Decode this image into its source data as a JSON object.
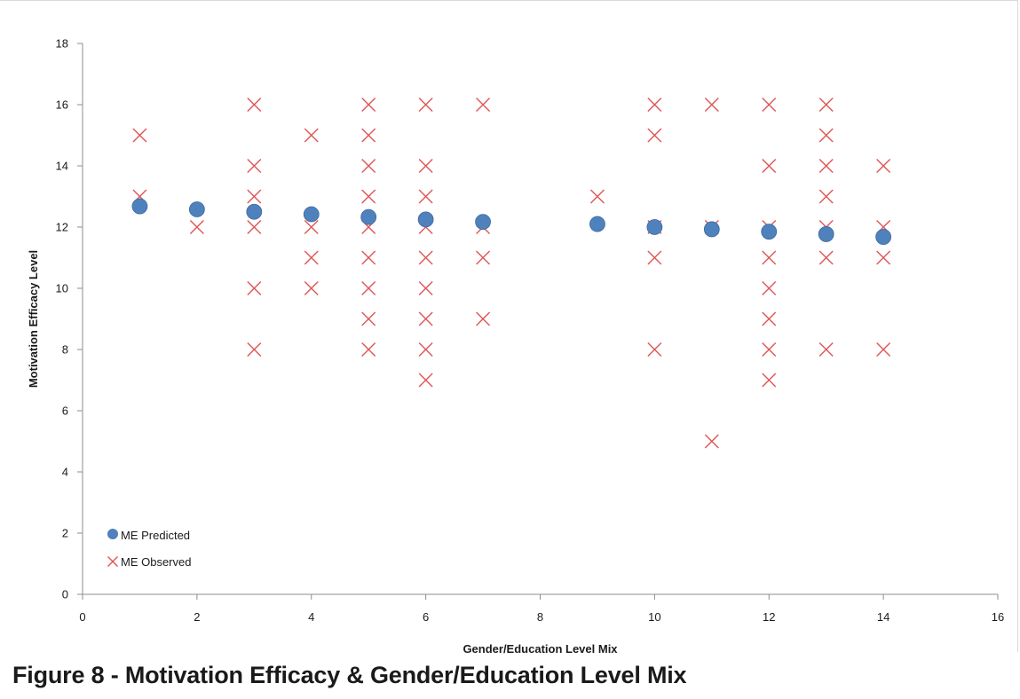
{
  "chart_data": {
    "type": "scatter",
    "title": "",
    "xlabel": "Gender/Education Level Mix",
    "ylabel": "Motivation Efficacy Level",
    "xlim": [
      0,
      16
    ],
    "ylim": [
      0,
      18
    ],
    "xticks": [
      0,
      2,
      4,
      6,
      8,
      10,
      12,
      14,
      16
    ],
    "yticks": [
      0,
      2,
      4,
      6,
      8,
      10,
      12,
      14,
      16,
      18
    ],
    "grid": false,
    "legend_position": "bottom-left",
    "series": [
      {
        "name": "ME Predicted",
        "marker": "circle",
        "color": "#4f81bd",
        "points": [
          [
            1,
            12.68
          ],
          [
            2,
            12.58
          ],
          [
            3,
            12.5
          ],
          [
            4,
            12.42
          ],
          [
            5,
            12.33
          ],
          [
            6,
            12.25
          ],
          [
            7,
            12.17
          ],
          [
            9,
            12.1
          ],
          [
            10,
            12.0
          ],
          [
            11,
            11.93
          ],
          [
            12,
            11.85
          ],
          [
            13,
            11.77
          ],
          [
            14,
            11.68
          ]
        ]
      },
      {
        "name": "ME Observed",
        "marker": "x",
        "color": "#e05555",
        "points": [
          [
            1,
            15
          ],
          [
            1,
            13
          ],
          [
            2,
            12
          ],
          [
            3,
            16
          ],
          [
            3,
            14
          ],
          [
            3,
            13
          ],
          [
            3,
            12
          ],
          [
            3,
            10
          ],
          [
            3,
            8
          ],
          [
            4,
            15
          ],
          [
            4,
            12
          ],
          [
            4,
            11
          ],
          [
            4,
            10
          ],
          [
            5,
            16
          ],
          [
            5,
            15
          ],
          [
            5,
            14
          ],
          [
            5,
            13
          ],
          [
            5,
            12
          ],
          [
            5,
            11
          ],
          [
            5,
            10
          ],
          [
            5,
            9
          ],
          [
            5,
            8
          ],
          [
            6,
            16
          ],
          [
            6,
            14
          ],
          [
            6,
            13
          ],
          [
            6,
            12
          ],
          [
            6,
            11
          ],
          [
            6,
            10
          ],
          [
            6,
            9
          ],
          [
            6,
            8
          ],
          [
            6,
            7
          ],
          [
            7,
            16
          ],
          [
            7,
            12
          ],
          [
            7,
            11
          ],
          [
            7,
            9
          ],
          [
            9,
            13
          ],
          [
            10,
            16
          ],
          [
            10,
            15
          ],
          [
            10,
            12
          ],
          [
            10,
            11
          ],
          [
            10,
            8
          ],
          [
            11,
            16
          ],
          [
            11,
            12
          ],
          [
            11,
            5
          ],
          [
            12,
            16
          ],
          [
            12,
            14
          ],
          [
            12,
            12
          ],
          [
            12,
            11
          ],
          [
            12,
            10
          ],
          [
            12,
            9
          ],
          [
            12,
            8
          ],
          [
            12,
            7
          ],
          [
            13,
            16
          ],
          [
            13,
            15
          ],
          [
            13,
            14
          ],
          [
            13,
            13
          ],
          [
            13,
            12
          ],
          [
            13,
            11
          ],
          [
            13,
            8
          ],
          [
            14,
            14
          ],
          [
            14,
            12
          ],
          [
            14,
            11
          ],
          [
            14,
            8
          ]
        ]
      }
    ]
  },
  "figure_caption": "Figure 8 - Motivation Efficacy & Gender/Education Level Mix"
}
